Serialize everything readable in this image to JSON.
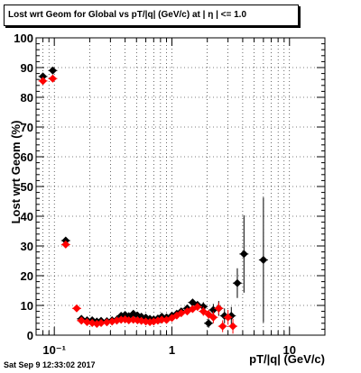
{
  "chart_data": {
    "type": "scatter",
    "title": "Lost wrt Geom for Global vs pT/|q| (GeV/c) at |  η | <= 1.0",
    "xlabel": "pT/|q| (GeV/c)",
    "ylabel": "Lost wrt Geom (%)",
    "xscale": "log",
    "xlim": [
      0.07,
      20
    ],
    "ylim": [
      0,
      100
    ],
    "grid": true,
    "x_tick_labels": [
      {
        "value": 0.1,
        "label": "10⁻¹"
      },
      {
        "value": 1,
        "label": "1"
      },
      {
        "value": 10,
        "label": "10"
      }
    ],
    "y_ticks": [
      0,
      10,
      20,
      30,
      40,
      50,
      60,
      70,
      80,
      90,
      100
    ],
    "series": [
      {
        "color": "#000000",
        "marker": "diamond",
        "points": [
          {
            "x": 0.08,
            "y": 87.0,
            "err": 0.8
          },
          {
            "x": 0.097,
            "y": 89.0,
            "err": 0.8
          },
          {
            "x": 0.125,
            "y": 31.8,
            "err": 0.6
          },
          {
            "x": 0.17,
            "y": 5.5,
            "err": 0.4
          },
          {
            "x": 0.19,
            "y": 5.0,
            "err": 0.4
          },
          {
            "x": 0.21,
            "y": 5.0,
            "err": 0.4
          },
          {
            "x": 0.23,
            "y": 4.6,
            "err": 0.4
          },
          {
            "x": 0.25,
            "y": 4.8,
            "err": 0.4
          },
          {
            "x": 0.28,
            "y": 4.7,
            "err": 0.4
          },
          {
            "x": 0.31,
            "y": 5.0,
            "err": 0.4
          },
          {
            "x": 0.34,
            "y": 5.2,
            "err": 0.5
          },
          {
            "x": 0.37,
            "y": 6.5,
            "err": 0.5
          },
          {
            "x": 0.4,
            "y": 6.8,
            "err": 0.5
          },
          {
            "x": 0.43,
            "y": 6.4,
            "err": 0.5
          },
          {
            "x": 0.47,
            "y": 7.2,
            "err": 0.6
          },
          {
            "x": 0.51,
            "y": 6.6,
            "err": 0.6
          },
          {
            "x": 0.55,
            "y": 6.2,
            "err": 0.6
          },
          {
            "x": 0.6,
            "y": 5.9,
            "err": 0.6
          },
          {
            "x": 0.65,
            "y": 5.5,
            "err": 0.6
          },
          {
            "x": 0.7,
            "y": 5.3,
            "err": 0.6
          },
          {
            "x": 0.76,
            "y": 5.6,
            "err": 0.7
          },
          {
            "x": 0.82,
            "y": 6.2,
            "err": 0.7
          },
          {
            "x": 0.9,
            "y": 6.0,
            "err": 0.8
          },
          {
            "x": 1.0,
            "y": 6.6,
            "err": 0.8
          },
          {
            "x": 1.1,
            "y": 7.2,
            "err": 0.9
          },
          {
            "x": 1.2,
            "y": 8.0,
            "err": 0.9
          },
          {
            "x": 1.35,
            "y": 9.0,
            "err": 1.0
          },
          {
            "x": 1.5,
            "y": 11.0,
            "err": 1.2
          },
          {
            "x": 1.65,
            "y": 10.2,
            "err": 1.2
          },
          {
            "x": 1.85,
            "y": 9.6,
            "err": 1.5
          },
          {
            "x": 2.05,
            "y": 4.0,
            "err": 1.5
          },
          {
            "x": 2.25,
            "y": 8.5,
            "err": 2.0
          },
          {
            "x": 2.5,
            "y": 9.0,
            "err": 2.5
          },
          {
            "x": 2.8,
            "y": 6.5,
            "err": 2.5
          },
          {
            "x": 3.2,
            "y": 6.5,
            "err": 3.0
          },
          {
            "x": 3.6,
            "y": 17.5,
            "err": 5.0
          },
          {
            "x": 4.1,
            "y": 27.3,
            "err": 13.0
          },
          {
            "x": 6.0,
            "y": 25.3,
            "err": 21.0
          }
        ]
      },
      {
        "color": "#ff0000",
        "marker": "diamond",
        "points": [
          {
            "x": 0.08,
            "y": 85.5,
            "err": 0.8
          },
          {
            "x": 0.097,
            "y": 86.3,
            "err": 0.8
          },
          {
            "x": 0.125,
            "y": 30.5,
            "err": 0.6
          },
          {
            "x": 0.155,
            "y": 9.0,
            "err": 0.5
          },
          {
            "x": 0.17,
            "y": 4.9,
            "err": 0.4
          },
          {
            "x": 0.19,
            "y": 4.4,
            "err": 0.4
          },
          {
            "x": 0.21,
            "y": 4.1,
            "err": 0.4
          },
          {
            "x": 0.23,
            "y": 3.8,
            "err": 0.4
          },
          {
            "x": 0.25,
            "y": 4.1,
            "err": 0.4
          },
          {
            "x": 0.28,
            "y": 4.3,
            "err": 0.4
          },
          {
            "x": 0.31,
            "y": 4.6,
            "err": 0.4
          },
          {
            "x": 0.34,
            "y": 4.9,
            "err": 0.5
          },
          {
            "x": 0.37,
            "y": 5.2,
            "err": 0.5
          },
          {
            "x": 0.4,
            "y": 5.3,
            "err": 0.5
          },
          {
            "x": 0.43,
            "y": 5.0,
            "err": 0.5
          },
          {
            "x": 0.47,
            "y": 5.2,
            "err": 0.6
          },
          {
            "x": 0.51,
            "y": 5.0,
            "err": 0.6
          },
          {
            "x": 0.55,
            "y": 4.8,
            "err": 0.6
          },
          {
            "x": 0.6,
            "y": 4.6,
            "err": 0.6
          },
          {
            "x": 0.65,
            "y": 4.4,
            "err": 0.6
          },
          {
            "x": 0.7,
            "y": 4.6,
            "err": 0.6
          },
          {
            "x": 0.76,
            "y": 4.9,
            "err": 0.7
          },
          {
            "x": 0.82,
            "y": 5.2,
            "err": 0.7
          },
          {
            "x": 0.9,
            "y": 5.1,
            "err": 0.8
          },
          {
            "x": 1.0,
            "y": 5.8,
            "err": 0.8
          },
          {
            "x": 1.1,
            "y": 6.6,
            "err": 0.9
          },
          {
            "x": 1.2,
            "y": 7.4,
            "err": 0.9
          },
          {
            "x": 1.35,
            "y": 8.0,
            "err": 1.0
          },
          {
            "x": 1.5,
            "y": 8.8,
            "err": 1.2
          },
          {
            "x": 1.65,
            "y": 9.5,
            "err": 1.2
          },
          {
            "x": 1.85,
            "y": 8.0,
            "err": 1.5
          },
          {
            "x": 2.05,
            "y": 7.0,
            "err": 1.5
          },
          {
            "x": 2.25,
            "y": 6.0,
            "err": 2.0
          },
          {
            "x": 2.5,
            "y": 9.0,
            "err": 2.0
          },
          {
            "x": 2.7,
            "y": 3.0,
            "err": 2.0
          },
          {
            "x": 3.0,
            "y": 6.0,
            "err": 2.5
          },
          {
            "x": 3.3,
            "y": 3.0,
            "err": 2.5
          }
        ]
      }
    ]
  },
  "datestamp": "Sat Sep  9 12:33:02 2017"
}
